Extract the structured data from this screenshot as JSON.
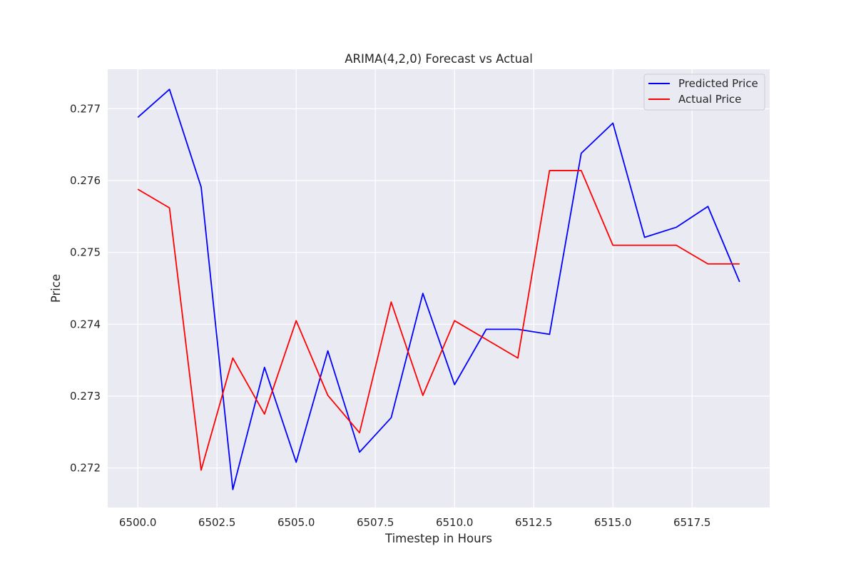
{
  "chart_data": {
    "type": "line",
    "title": "ARIMA(4,2,0) Forecast vs Actual",
    "xlabel": "Timestep in Hours",
    "ylabel": "Price",
    "xlim": [
      6499.05,
      6519.95
    ],
    "ylim": [
      0.27145,
      0.27755
    ],
    "xticks": [
      6500.0,
      6502.5,
      6505.0,
      6507.5,
      6510.0,
      6512.5,
      6515.0,
      6517.5
    ],
    "xtick_labels": [
      "6500.0",
      "6502.5",
      "6505.0",
      "6507.5",
      "6510.0",
      "6512.5",
      "6515.0",
      "6517.5"
    ],
    "yticks": [
      0.272,
      0.273,
      0.274,
      0.275,
      0.276,
      0.277
    ],
    "ytick_labels": [
      "0.272",
      "0.273",
      "0.274",
      "0.275",
      "0.276",
      "0.277"
    ],
    "grid": true,
    "legend_position": "top-right",
    "x": [
      6500,
      6501,
      6502,
      6503,
      6504,
      6505,
      6506,
      6507,
      6508,
      6509,
      6510,
      6511,
      6512,
      6513,
      6514,
      6515,
      6516,
      6517,
      6518,
      6519
    ],
    "series": [
      {
        "name": "Predicted Price",
        "color": "#0000ff",
        "values": [
          0.27688,
          0.27727,
          0.27591,
          0.2717,
          0.2734,
          0.27208,
          0.27363,
          0.27222,
          0.2727,
          0.27443,
          0.27316,
          0.27393,
          0.27393,
          0.27386,
          0.27638,
          0.2768,
          0.27521,
          0.27535,
          0.27564,
          0.27459
        ]
      },
      {
        "name": "Actual Price",
        "color": "#ff0000",
        "values": [
          0.27588,
          0.27562,
          0.27197,
          0.27353,
          0.27275,
          0.27405,
          0.27301,
          0.27249,
          0.27431,
          0.27301,
          0.27405,
          0.27379,
          0.27353,
          0.27614,
          0.27614,
          0.2751,
          0.2751,
          0.2751,
          0.27484,
          0.27484
        ]
      }
    ]
  },
  "colors": {
    "plot_background": "#eaeaf2",
    "grid": "#ffffff",
    "text": "#262626"
  }
}
